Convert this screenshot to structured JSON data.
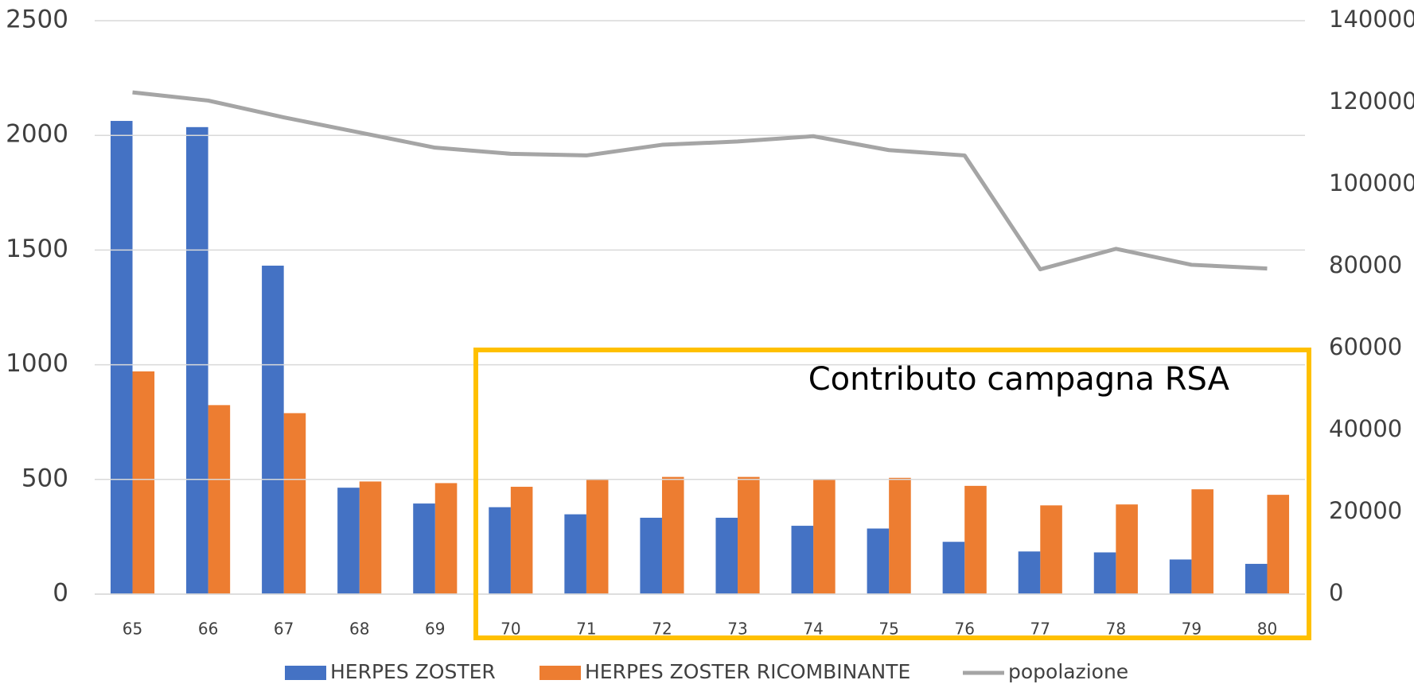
{
  "chart_data": {
    "type": "bar",
    "categories": [
      "65",
      "66",
      "67",
      "68",
      "69",
      "70",
      "71",
      "72",
      "73",
      "74",
      "75",
      "76",
      "77",
      "78",
      "79",
      "80"
    ],
    "series": [
      {
        "name": "HERPES ZOSTER",
        "type": "bar",
        "color": "#4472c4",
        "values": [
          2063,
          2036,
          1432,
          464,
          395,
          379,
          348,
          333,
          333,
          298,
          286,
          228,
          186,
          182,
          151,
          132
        ]
      },
      {
        "name": "HERPES ZOSTER RICOMBINANTE",
        "type": "bar",
        "color": "#ed7d31",
        "values": [
          971,
          824,
          789,
          491,
          484,
          468,
          499,
          511,
          511,
          499,
          507,
          472,
          387,
          391,
          457,
          433
        ]
      },
      {
        "name": "popolazione",
        "type": "line",
        "axis": "y2",
        "color": "#a5a5a5",
        "values": [
          122500,
          120500,
          116400,
          112700,
          109000,
          107500,
          107100,
          109700,
          110500,
          111800,
          108400,
          107100,
          79300,
          84300,
          80400,
          79500
        ]
      }
    ],
    "ylim": [
      0,
      2500
    ],
    "yticks": [
      0,
      500,
      1000,
      1500,
      2000,
      2500
    ],
    "y2lim": [
      0,
      140000
    ],
    "y2ticks": [
      0,
      20000,
      40000,
      60000,
      80000,
      100000,
      120000,
      140000
    ],
    "grid": true,
    "legend": "bottom",
    "annotation": "Contributo campagna RSA"
  }
}
